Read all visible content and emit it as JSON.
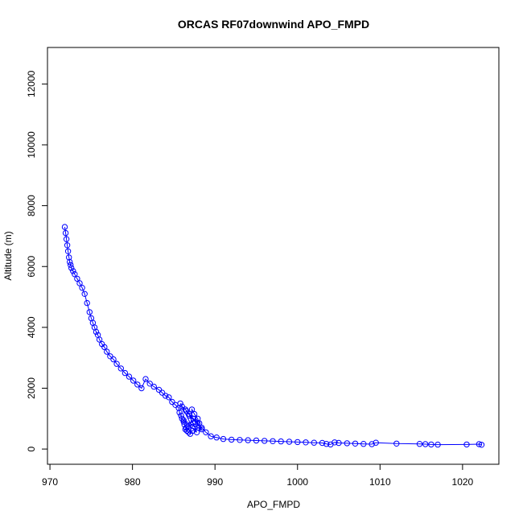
{
  "chart_data": {
    "type": "scatter",
    "title": "ORCAS RF07downwind APO_FMPD",
    "xlabel": "APO_FMPD",
    "ylabel": "Altitude (m)",
    "xlim": [
      969.7,
      1024.4
    ],
    "ylim": [
      -500,
      13200
    ],
    "xticks": [
      970,
      980,
      990,
      1000,
      1010,
      1020
    ],
    "yticks": [
      0,
      2000,
      4000,
      6000,
      8000,
      10000,
      12000
    ],
    "point_style": "open-circle",
    "line_connected": true,
    "grid": false,
    "colors": {
      "series": "#0000ff",
      "axis": "#000000",
      "background": "#ffffff"
    },
    "series": [
      {
        "x": [
          971.8,
          971.9,
          972.0,
          972.1,
          972.2,
          972.3,
          972.4,
          972.5,
          972.6,
          972.8,
          973.0,
          973.3,
          973.6,
          973.9,
          974.2,
          974.5,
          974.8,
          975.0,
          975.2,
          975.4,
          975.6,
          975.8,
          976.0,
          976.3,
          976.6,
          976.9,
          977.3,
          977.7,
          978.1,
          978.6,
          979.1,
          979.6,
          980.1,
          980.6,
          981.1,
          981.6,
          982.1,
          982.6,
          983.2,
          983.6,
          984.0,
          984.4,
          984.8,
          985.2,
          985.6,
          985.7,
          985.9,
          986.0,
          986.2,
          986.3,
          986.5,
          986.6,
          986.8,
          987.0,
          987.2,
          987.5,
          987.9,
          988.1,
          986.7,
          986.4,
          987.3,
          988.0,
          986.2,
          987.8,
          986.9,
          987.6,
          986.5,
          988.4,
          987.1,
          985.8,
          986.0,
          986.4,
          986.9,
          987.4,
          987.9,
          988.4,
          988.9,
          989.5,
          990.2,
          991.0,
          992.0,
          993.0,
          994.0,
          995.0,
          996.0,
          997.0,
          998.0,
          999.0,
          1000.0,
          1001.0,
          1002.0,
          1003.0,
          1003.5,
          1004.0,
          1004.5,
          1005.0,
          1006.0,
          1007.0,
          1008.0,
          1009.0,
          1009.5,
          1012.0,
          1014.8,
          1015.5,
          1016.2,
          1017.0,
          1020.5,
          1022.0,
          1022.3
        ],
        "y": [
          7300,
          7100,
          6900,
          6700,
          6500,
          6300,
          6150,
          6050,
          5950,
          5850,
          5750,
          5600,
          5450,
          5300,
          5100,
          4800,
          4500,
          4300,
          4150,
          4000,
          3850,
          3750,
          3600,
          3450,
          3350,
          3200,
          3050,
          2950,
          2800,
          2650,
          2500,
          2380,
          2250,
          2120,
          2000,
          2300,
          2150,
          2050,
          1950,
          1850,
          1750,
          1700,
          1550,
          1450,
          1350,
          1200,
          1100,
          1000,
          900,
          800,
          700,
          600,
          550,
          500,
          1300,
          1150,
          1000,
          850,
          750,
          650,
          600,
          700,
          950,
          550,
          1100,
          900,
          1250,
          650,
          800,
          1500,
          1400,
          1300,
          1150,
          1000,
          850,
          700,
          550,
          420,
          380,
          330,
          310,
          300,
          290,
          280,
          270,
          260,
          250,
          240,
          230,
          220,
          210,
          200,
          170,
          150,
          220,
          200,
          190,
          180,
          170,
          160,
          210,
          180,
          170,
          160,
          150,
          145,
          150,
          160,
          140
        ]
      }
    ]
  }
}
